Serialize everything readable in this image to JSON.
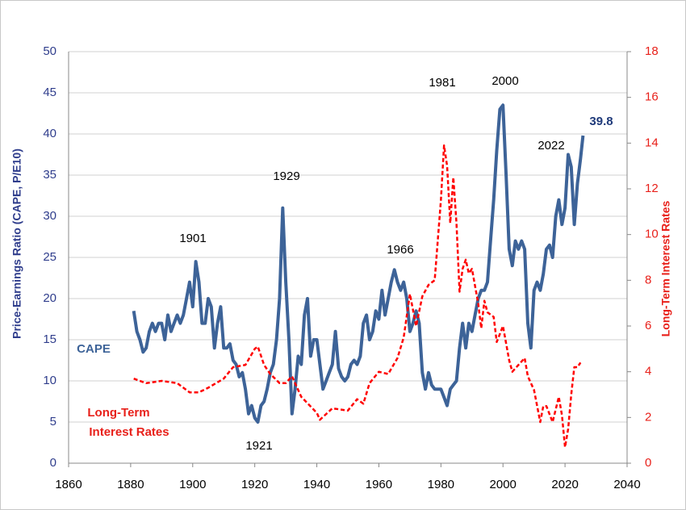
{
  "chart_data": {
    "type": "line",
    "y_axis_label": "Price-Earnings Ratio (CAPE, P/E10)",
    "y2_axis_label": "Long-Term Interest Rates",
    "annotations": [
      "1901",
      "1929",
      "1966",
      "1981",
      "2000",
      "2022",
      "1921",
      "39.8",
      "CAPE",
      "Long-Term",
      "Interest Rates"
    ],
    "xlim": [
      1860,
      2040
    ],
    "xticks": [
      1860,
      1880,
      1900,
      1920,
      1940,
      1960,
      1980,
      2000,
      2020,
      2040
    ],
    "ylim": [
      0,
      50
    ],
    "yticks": [
      0,
      5,
      10,
      15,
      20,
      25,
      30,
      35,
      40,
      45,
      50
    ],
    "y2lim": [
      0,
      18
    ],
    "y2ticks": [
      0,
      2,
      4,
      6,
      8,
      10,
      12,
      14,
      16,
      18
    ],
    "grid": true,
    "series": [
      {
        "name": "CAPE",
        "color": "#3d6398",
        "x": [
          1881,
          1882,
          1883,
          1884,
          1885,
          1886,
          1887,
          1888,
          1889,
          1890,
          1891,
          1892,
          1893,
          1894,
          1895,
          1896,
          1897,
          1898,
          1899,
          1900,
          1901,
          1902,
          1903,
          1904,
          1905,
          1906,
          1907,
          1908,
          1909,
          1910,
          1911,
          1912,
          1913,
          1914,
          1915,
          1916,
          1917,
          1918,
          1919,
          1920,
          1921,
          1922,
          1923,
          1924,
          1925,
          1926,
          1927,
          1928,
          1929,
          1930,
          1931,
          1932,
          1933,
          1934,
          1935,
          1936,
          1937,
          1938,
          1939,
          1940,
          1941,
          1942,
          1943,
          1944,
          1945,
          1946,
          1947,
          1948,
          1949,
          1950,
          1951,
          1952,
          1953,
          1954,
          1955,
          1956,
          1957,
          1958,
          1959,
          1960,
          1961,
          1962,
          1963,
          1964,
          1965,
          1966,
          1967,
          1968,
          1969,
          1970,
          1971,
          1972,
          1973,
          1974,
          1975,
          1976,
          1977,
          1978,
          1979,
          1980,
          1981,
          1982,
          1983,
          1984,
          1985,
          1986,
          1987,
          1988,
          1989,
          1990,
          1991,
          1992,
          1993,
          1994,
          1995,
          1996,
          1997,
          1998,
          1999,
          2000,
          2001,
          2002,
          2003,
          2004,
          2005,
          2006,
          2007,
          2008,
          2009,
          2010,
          2011,
          2012,
          2013,
          2014,
          2015,
          2016,
          2017,
          2018,
          2019,
          2020,
          2021,
          2022,
          2023,
          2024,
          2025,
          2025.8
        ],
        "values": [
          18.5,
          16,
          15,
          13.5,
          14,
          16,
          17,
          16,
          17,
          17,
          15,
          18,
          16,
          17,
          18,
          17,
          18,
          20,
          22,
          19,
          24.5,
          22,
          17,
          17,
          20,
          19,
          14,
          17,
          19,
          14,
          14,
          14.5,
          12.5,
          12,
          10.5,
          11,
          9,
          6,
          7,
          5.5,
          5,
          7,
          7.5,
          9,
          11,
          12,
          15,
          20,
          31,
          22,
          15,
          6,
          9,
          13,
          12,
          18,
          20,
          13,
          15,
          15,
          12,
          9,
          10,
          11,
          12,
          16,
          11.5,
          10.5,
          10,
          10.5,
          12,
          12.5,
          12,
          13,
          17,
          18,
          15,
          16,
          18.5,
          17.5,
          21,
          18,
          20,
          22,
          23.5,
          22,
          21,
          22,
          20,
          16,
          17,
          18.5,
          17,
          11,
          9,
          11,
          9.5,
          9,
          9,
          9,
          8,
          7,
          9,
          9.5,
          10,
          14,
          17,
          14,
          17,
          16,
          18,
          20,
          21,
          21,
          22,
          27,
          32,
          38,
          43,
          43.5,
          35,
          26,
          24,
          27,
          26,
          27,
          26,
          17,
          14,
          21,
          22,
          21,
          23,
          26,
          26.5,
          25,
          30,
          32,
          29,
          31,
          37.5,
          36,
          29,
          34,
          37,
          39.8
        ]
      },
      {
        "name": "Long-Term Interest Rates",
        "color": "#ff0000",
        "axis": "y2",
        "x": [
          1881,
          1885,
          1890,
          1895,
          1899,
          1902,
          1905,
          1910,
          1913,
          1917,
          1920,
          1921,
          1923,
          1925,
          1928,
          1930,
          1932,
          1935,
          1940,
          1941,
          1945,
          1950,
          1953,
          1955,
          1957,
          1960,
          1963,
          1966,
          1968,
          1970,
          1972,
          1974,
          1976,
          1978,
          1980,
          1981,
          1982,
          1983,
          1984,
          1985,
          1986,
          1987,
          1988,
          1989,
          1990,
          1992,
          1993,
          1994,
          1995,
          1997,
          1998,
          2000,
          2002,
          2003,
          2005,
          2007,
          2008,
          2010,
          2012,
          2013,
          2014,
          2016,
          2018,
          2019,
          2020,
          2021,
          2022,
          2023,
          2024,
          2025
        ],
        "values": [
          3.7,
          3.5,
          3.6,
          3.5,
          3.1,
          3.1,
          3.3,
          3.7,
          4.2,
          4.3,
          5.0,
          5.1,
          4.3,
          3.9,
          3.5,
          3.5,
          3.8,
          2.9,
          2.2,
          1.9,
          2.4,
          2.3,
          2.8,
          2.6,
          3.5,
          4.0,
          3.9,
          4.6,
          5.5,
          7.4,
          6.0,
          7.3,
          7.8,
          8.0,
          11.5,
          13.9,
          13.0,
          10.5,
          12.5,
          10.5,
          7.5,
          8.5,
          8.9,
          8.3,
          8.5,
          7.0,
          5.9,
          7.1,
          6.6,
          6.4,
          5.3,
          6.0,
          4.5,
          4.0,
          4.3,
          4.6,
          3.8,
          3.2,
          1.8,
          2.5,
          2.5,
          1.8,
          2.9,
          2.1,
          0.7,
          1.5,
          3.0,
          4.2,
          4.2,
          4.4
        ]
      }
    ]
  }
}
